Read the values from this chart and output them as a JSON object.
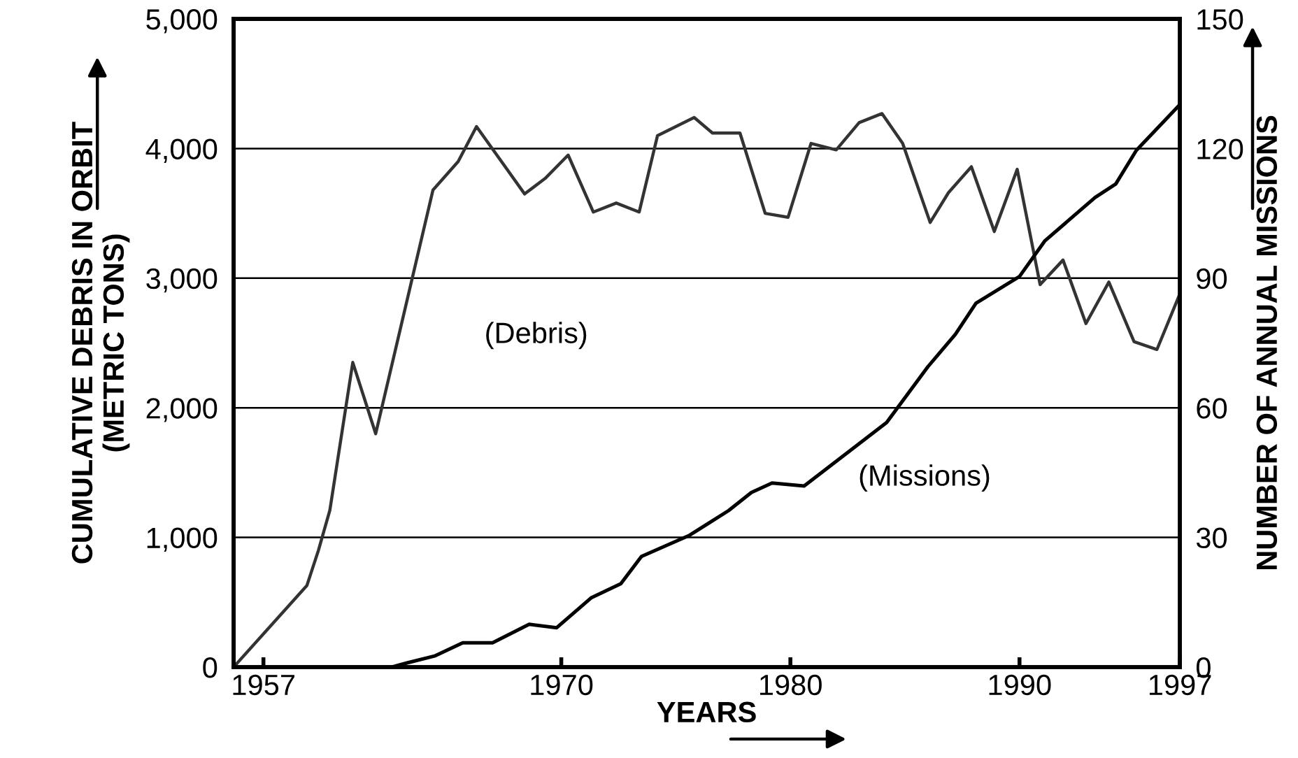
{
  "chart_data": {
    "type": "line",
    "xlabel": "YEARS",
    "ylabel": "CUMULATIVE DEBRIS IN ORBIT\n(METRIC TONS)",
    "y2label": "NUMBER OF ANNUAL MISSIONS",
    "series": [
      {
        "name": "(Debris)",
        "color": "#333333",
        "x": [
          1955.7,
          1958.9,
          1959.4,
          1959.9,
          1960.9,
          1961.9,
          1964.4,
          1965.5,
          1966.3,
          1968.4,
          1969.3,
          1970.3,
          1971.4,
          1972.4,
          1973.4,
          1974.2,
          1975.8,
          1976.6,
          1977.8,
          1978.9,
          1979.9,
          1980.9,
          1982.0,
          1983.0,
          1984.0,
          1984.9,
          1986.1,
          1986.9,
          1987.9,
          1988.9,
          1989.9,
          1990.9,
          1991.9,
          1992.9,
          1993.9,
          1995.0,
          1996.0,
          1997.0
        ],
        "values": [
          0,
          630,
          900,
          1210,
          2350,
          1800,
          3680,
          3900,
          4170,
          3650,
          3770,
          3950,
          3510,
          3580,
          3510,
          4100,
          4240,
          4120,
          4120,
          3500,
          3470,
          4040,
          3990,
          4200,
          4270,
          4040,
          3430,
          3660,
          3860,
          3360,
          3840,
          2950,
          3140,
          2650,
          2970,
          2510,
          2450,
          2880
        ]
      },
      {
        "name": "(Missions)",
        "color": "#000000",
        "axis": "y2",
        "x": [
          1962.6,
          1963.3,
          1964.5,
          1965.7,
          1967.0,
          1968.6,
          1969.8,
          1971.3,
          1972.6,
          1973.5,
          1975.6,
          1977.3,
          1978.3,
          1979.2,
          1980.6,
          1984.2,
          1986.0,
          1987.2,
          1988.1,
          1990.0,
          1991.1,
          1993.3,
          1994.2,
          1995.1,
          1997.0
        ],
        "values": [
          0,
          1,
          2.6,
          5.6,
          5.6,
          9.9,
          9.1,
          16,
          19.3,
          25.6,
          30.5,
          36.2,
          40.4,
          42.6,
          41.9,
          56.6,
          69.5,
          77,
          84.2,
          90.4,
          98.6,
          108.7,
          111.8,
          119.6,
          130.2
        ]
      }
    ],
    "xlim": [
      1955.7,
      1997
    ],
    "xticks": [
      1957,
      1970,
      1980,
      1990,
      1997
    ],
    "ylim": [
      0,
      5000
    ],
    "yticks": [
      0,
      {
        "value": 1000,
        "label": "1,000"
      },
      {
        "value": 2000,
        "label": "2,000"
      },
      {
        "value": 3000,
        "label": "3,000"
      },
      {
        "value": 4000,
        "label": "4,000"
      },
      {
        "value": 5000,
        "label": "5,000"
      }
    ],
    "y2lim": [
      0,
      150
    ],
    "y2ticks": [
      0,
      30,
      60,
      90,
      120,
      150
    ],
    "grid": "y",
    "legend": false,
    "marker": "none",
    "line_style": "solid"
  }
}
